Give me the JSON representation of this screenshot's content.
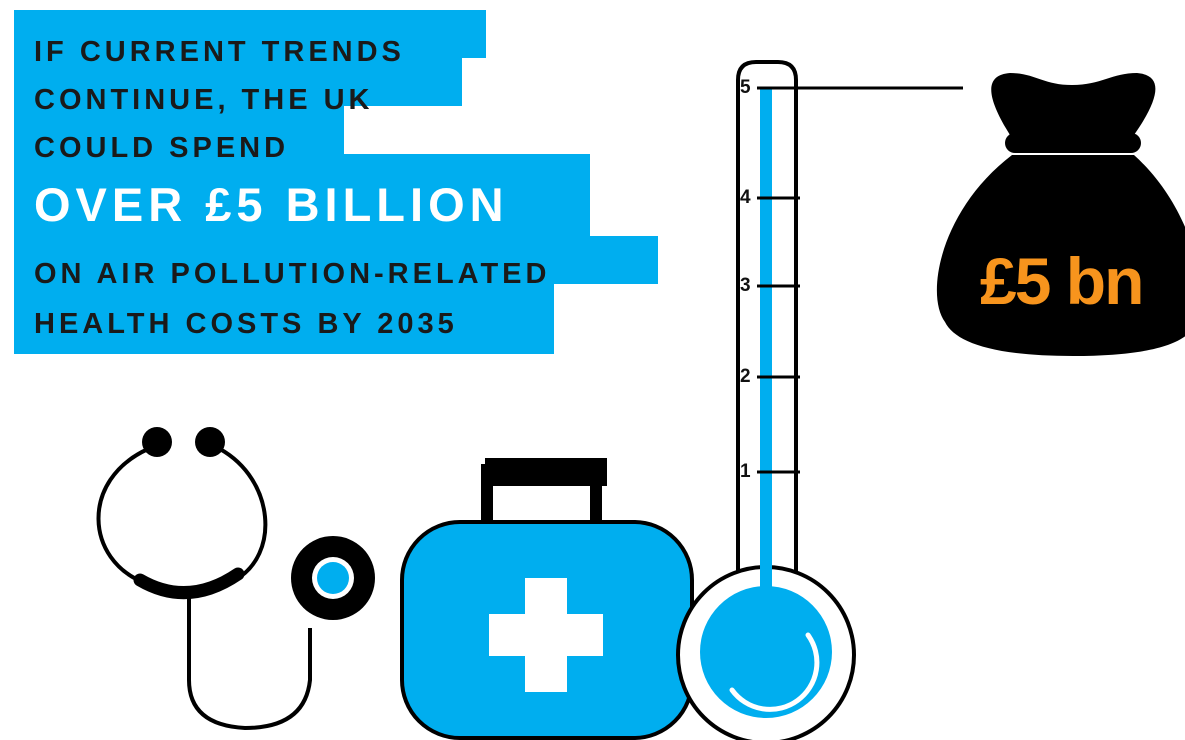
{
  "headline": {
    "lines": [
      "IF CURRENT TRENDS",
      "CONTINUE, THE UK",
      "COULD SPEND",
      "OVER £5 BILLION",
      "ON AIR POLLUTION-RELATED",
      "HEALTH COSTS BY 2035"
    ]
  },
  "thermometer": {
    "ticks": [
      "1",
      "2",
      "3",
      "4",
      "5"
    ],
    "level": 5,
    "max": 5
  },
  "money_bag": {
    "label": "£5 bn"
  },
  "colors": {
    "accent": "#00aeef",
    "ink": "#1a1a1a",
    "money": "#f7941d"
  },
  "icons": [
    "stethoscope-icon",
    "first-aid-kit-icon",
    "thermometer-icon",
    "money-bag-icon"
  ]
}
